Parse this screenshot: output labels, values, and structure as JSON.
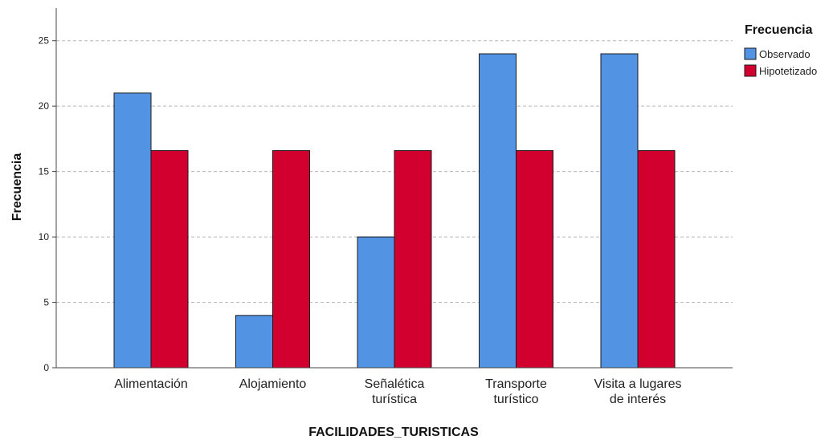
{
  "chart_data": {
    "type": "bar",
    "xlabel": "FACILIDADES_TURISTICAS",
    "ylabel": "Frecuencia",
    "categories": [
      [
        "Alimentación"
      ],
      [
        "Alojamiento"
      ],
      [
        "Señalética",
        "turística"
      ],
      [
        "Transporte",
        "turístico"
      ],
      [
        "Visita a lugares",
        "de interés"
      ]
    ],
    "series": [
      {
        "name": "Observado",
        "color": "#5393E3",
        "values": [
          21,
          4,
          10,
          24,
          24
        ]
      },
      {
        "name": "Hipotetizado",
        "color": "#D2002E",
        "values": [
          16.6,
          16.6,
          16.6,
          16.6,
          16.6
        ]
      }
    ],
    "ylim": [
      0,
      27.5
    ],
    "yticks": [
      0,
      5,
      10,
      15,
      20,
      25
    ],
    "grid": true,
    "legend": {
      "title": "Frecuencia",
      "placement": "top-right"
    }
  }
}
